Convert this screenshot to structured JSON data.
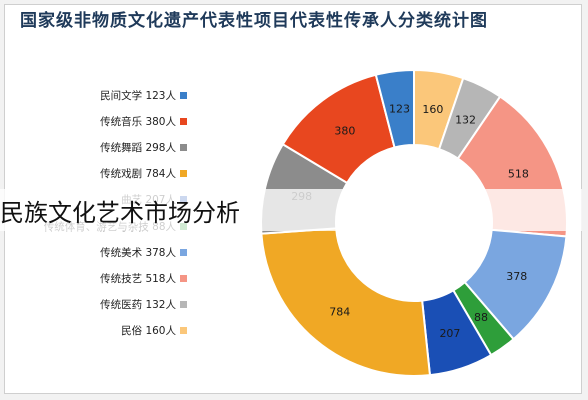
{
  "overlay": {
    "text": "民族文化艺术市场分析"
  },
  "chart_data": {
    "type": "pie",
    "title": "国家级非物质文化遗产代表性项目代表性传承人分类统计图",
    "donut": true,
    "legend_position": "left",
    "legend": [
      {
        "label": "民间文学 123人",
        "color": "#3a7fc9"
      },
      {
        "label": "传统音乐 380人",
        "color": "#e8471f"
      },
      {
        "label": "传统舞蹈 298人",
        "color": "#8c8c8c"
      },
      {
        "label": "传统戏剧 784人",
        "color": "#f0a825"
      },
      {
        "label": "曲艺 207人",
        "color": "#1a4fb5"
      },
      {
        "label": "传统体育、游艺与杂技 88人",
        "color": "#2e9e3a"
      },
      {
        "label": "传统美术 378人",
        "color": "#7aa6e0"
      },
      {
        "label": "传统技艺 518人",
        "color": "#f59585"
      },
      {
        "label": "传统医药 132人",
        "color": "#b6b6b6"
      },
      {
        "label": "民俗 160人",
        "color": "#fbc77a"
      }
    ],
    "slices": [
      {
        "value": 160,
        "label": "160",
        "color": "#fbc77a"
      },
      {
        "value": 132,
        "label": "132",
        "color": "#b6b6b6"
      },
      {
        "value": 518,
        "label": "518",
        "color": "#f59585"
      },
      {
        "value": 378,
        "label": "378",
        "color": "#7aa6e0"
      },
      {
        "value": 88,
        "label": "88",
        "color": "#2e9e3a"
      },
      {
        "value": 207,
        "label": "207",
        "color": "#1a4fb5"
      },
      {
        "value": 784,
        "label": "784",
        "color": "#f0a825"
      },
      {
        "value": 298,
        "label": "298",
        "color": "#8c8c8c"
      },
      {
        "value": 380,
        "label": "380",
        "color": "#e8471f"
      },
      {
        "value": 123,
        "label": "123",
        "color": "#3a7fc9"
      }
    ]
  }
}
